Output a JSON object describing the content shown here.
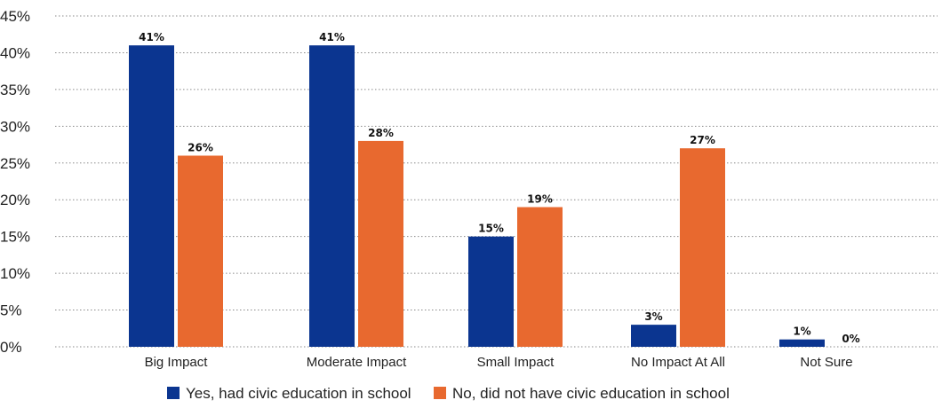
{
  "chart_data": {
    "type": "bar",
    "title": "",
    "xlabel": "",
    "ylabel": "",
    "categories": [
      "Big Impact",
      "Moderate Impact",
      "Small Impact",
      "No Impact At All",
      "Not Sure"
    ],
    "series": [
      {
        "name": "Yes, had civic education in school",
        "color": "#0b3590",
        "values": [
          41,
          41,
          15,
          3,
          1
        ],
        "labels": [
          "41%",
          "41%",
          "15%",
          "3%",
          "1%"
        ]
      },
      {
        "name": "No, did not have civic education in school",
        "color": "#e8692f",
        "values": [
          26,
          28,
          19,
          27,
          0
        ],
        "labels": [
          "26%",
          "28%",
          "19%",
          "27%",
          "0%"
        ]
      }
    ],
    "ylim": [
      0,
      45
    ],
    "yticks": [
      0,
      5,
      10,
      15,
      20,
      25,
      30,
      35,
      40,
      45
    ],
    "ytick_labels": [
      "0%",
      "5%",
      "10%",
      "15%",
      "20%",
      "25%",
      "30%",
      "35%",
      "40%",
      "45%"
    ],
    "grid": true,
    "legend_position": "bottom"
  }
}
